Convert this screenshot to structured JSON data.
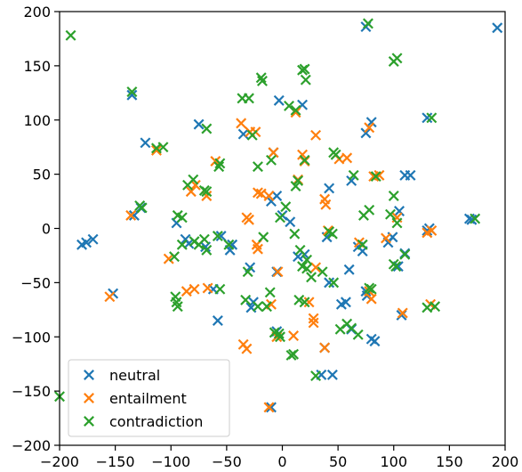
{
  "chart_data": {
    "type": "scatter",
    "title": "",
    "xlabel": "",
    "ylabel": "",
    "xlim": [
      -200,
      200
    ],
    "ylim": [
      -200,
      200
    ],
    "xticks": [
      -200,
      -150,
      -100,
      -50,
      0,
      50,
      100,
      150,
      200
    ],
    "yticks": [
      -200,
      -150,
      -100,
      -50,
      0,
      50,
      100,
      150,
      200
    ],
    "grid": false,
    "legend_position": "lower-left",
    "marker": "x",
    "series": [
      {
        "name": "neutral",
        "color": "#1f77b4",
        "points": [
          [
            75,
            186
          ],
          [
            193,
            185
          ],
          [
            -135,
            123
          ],
          [
            130,
            102
          ],
          [
            -75,
            96
          ],
          [
            80,
            98
          ],
          [
            -123,
            79
          ],
          [
            -35,
            87
          ],
          [
            75,
            88
          ],
          [
            -8,
            70
          ],
          [
            18,
            114
          ],
          [
            -3,
            118
          ],
          [
            42,
            37
          ],
          [
            -5,
            30
          ],
          [
            -10,
            25
          ],
          [
            0,
            12
          ],
          [
            7,
            6
          ],
          [
            -180,
            -15
          ],
          [
            -176,
            -13
          ],
          [
            -170,
            -10
          ],
          [
            -152,
            -60
          ],
          [
            -133,
            12
          ],
          [
            -127,
            19
          ],
          [
            -95,
            5
          ],
          [
            -87,
            -10
          ],
          [
            -84,
            -14
          ],
          [
            -69,
            -17
          ],
          [
            -55,
            -7
          ],
          [
            -45,
            -15
          ],
          [
            -47,
            -20
          ],
          [
            -62,
            -56
          ],
          [
            -58,
            -85
          ],
          [
            -29,
            -36
          ],
          [
            -26,
            -68
          ],
          [
            -28,
            -73
          ],
          [
            -10,
            -165
          ],
          [
            -5,
            -40
          ],
          [
            -5,
            -95
          ],
          [
            14,
            -26
          ],
          [
            20,
            -24
          ],
          [
            40,
            -8
          ],
          [
            42,
            -50
          ],
          [
            38,
            -110
          ],
          [
            53,
            -70
          ],
          [
            57,
            -68
          ],
          [
            60,
            -38
          ],
          [
            62,
            -93
          ],
          [
            72,
            -21
          ],
          [
            68,
            -17
          ],
          [
            75,
            -58
          ],
          [
            76,
            -62
          ],
          [
            104,
            -35
          ],
          [
            105,
            16
          ],
          [
            107,
            -80
          ],
          [
            110,
            49
          ],
          [
            115,
            49
          ],
          [
            95,
            -13
          ],
          [
            132,
            0
          ],
          [
            130,
            -2
          ],
          [
            168,
            9
          ],
          [
            170,
            8
          ],
          [
            35,
            -135
          ],
          [
            45,
            -135
          ],
          [
            83,
            -104
          ],
          [
            80,
            -102
          ],
          [
            99,
            -8
          ],
          [
            62,
            44
          ],
          [
            110,
            -23
          ]
        ]
      },
      {
        "name": "entailment",
        "color": "#ff7f0e",
        "points": [
          [
            -113,
            72
          ],
          [
            -82,
            34
          ],
          [
            -78,
            40
          ],
          [
            -37,
            97
          ],
          [
            -29,
            89
          ],
          [
            -24,
            89
          ],
          [
            -8,
            70
          ],
          [
            14,
            45
          ],
          [
            18,
            68
          ],
          [
            12,
            107
          ],
          [
            30,
            86
          ],
          [
            -22,
            33
          ],
          [
            -19,
            32
          ],
          [
            -12,
            30
          ],
          [
            -32,
            10
          ],
          [
            -30,
            8
          ],
          [
            -68,
            30
          ],
          [
            -60,
            62
          ],
          [
            -136,
            12
          ],
          [
            -102,
            -28
          ],
          [
            -155,
            -63
          ],
          [
            -86,
            -58
          ],
          [
            -79,
            -56
          ],
          [
            -67,
            -55
          ],
          [
            -23,
            -15
          ],
          [
            -22,
            -19
          ],
          [
            -35,
            -107
          ],
          [
            -32,
            -111
          ],
          [
            -4,
            -40
          ],
          [
            -12,
            -165
          ],
          [
            10,
            -99
          ],
          [
            24,
            -68
          ],
          [
            28,
            -83
          ],
          [
            28,
            -87
          ],
          [
            30,
            -36
          ],
          [
            38,
            -110
          ],
          [
            41,
            -2
          ],
          [
            38,
            27
          ],
          [
            51,
            64
          ],
          [
            58,
            65
          ],
          [
            78,
            93
          ],
          [
            82,
            48
          ],
          [
            87,
            49
          ],
          [
            69,
            -13
          ],
          [
            80,
            -65
          ],
          [
            78,
            -58
          ],
          [
            93,
            -9
          ],
          [
            103,
            10
          ],
          [
            108,
            -78
          ],
          [
            130,
            -4
          ],
          [
            134,
            -2
          ],
          [
            133,
            -70
          ],
          [
            -10,
            -70
          ],
          [
            -5,
            -100
          ],
          [
            39,
            22
          ],
          [
            20,
            62
          ]
        ]
      },
      {
        "name": "contradiction",
        "color": "#2ca02c",
        "points": [
          [
            -190,
            178
          ],
          [
            77,
            189
          ],
          [
            -135,
            126
          ],
          [
            100,
            154
          ],
          [
            103,
            157
          ],
          [
            134,
            102
          ],
          [
            -19,
            139
          ],
          [
            -18,
            136
          ],
          [
            20,
            147
          ],
          [
            18,
            146
          ],
          [
            21,
            137
          ],
          [
            -30,
            120
          ],
          [
            6,
            113
          ],
          [
            12,
            109
          ],
          [
            -68,
            92
          ],
          [
            -27,
            86
          ],
          [
            -10,
            63
          ],
          [
            -2,
            10
          ],
          [
            3,
            20
          ],
          [
            12,
            39
          ],
          [
            14,
            44
          ],
          [
            20,
            63
          ],
          [
            46,
            70
          ],
          [
            48,
            68
          ],
          [
            64,
            49
          ],
          [
            84,
            48
          ],
          [
            100,
            30
          ],
          [
            78,
            17
          ],
          [
            73,
            12
          ],
          [
            -113,
            74
          ],
          [
            -107,
            75
          ],
          [
            -85,
            40
          ],
          [
            -80,
            45
          ],
          [
            -70,
            35
          ],
          [
            -68,
            34
          ],
          [
            -57,
            57
          ],
          [
            -56,
            60
          ],
          [
            -36,
            120
          ],
          [
            -22,
            57
          ],
          [
            -128,
            21
          ],
          [
            -126,
            19
          ],
          [
            -94,
            12
          ],
          [
            -90,
            10
          ],
          [
            -79,
            -12
          ],
          [
            -75,
            -15
          ],
          [
            -70,
            -10
          ],
          [
            -68,
            -20
          ],
          [
            -90,
            -15
          ],
          [
            -97,
            -26
          ],
          [
            -96,
            -63
          ],
          [
            -95,
            -68
          ],
          [
            -94,
            -72
          ],
          [
            -58,
            -7
          ],
          [
            -48,
            -15
          ],
          [
            -56,
            -56
          ],
          [
            -33,
            -66
          ],
          [
            -31,
            -40
          ],
          [
            -22,
            -72
          ],
          [
            -14,
            -72
          ],
          [
            -11,
            -59
          ],
          [
            -7,
            -96
          ],
          [
            -3,
            -97
          ],
          [
            -2,
            -100
          ],
          [
            8,
            -117
          ],
          [
            10,
            -116
          ],
          [
            15,
            -66
          ],
          [
            18,
            -35
          ],
          [
            20,
            -68
          ],
          [
            22,
            -37
          ],
          [
            26,
            -45
          ],
          [
            30,
            -136
          ],
          [
            36,
            -40
          ],
          [
            46,
            -50
          ],
          [
            52,
            -93
          ],
          [
            58,
            -88
          ],
          [
            62,
            -92
          ],
          [
            68,
            -98
          ],
          [
            80,
            -56
          ],
          [
            78,
            -55
          ],
          [
            100,
            -33
          ],
          [
            102,
            -35
          ],
          [
            110,
            -24
          ],
          [
            137,
            -72
          ],
          [
            173,
            9
          ],
          [
            -17,
            -8
          ],
          [
            -200,
            -155
          ],
          [
            11,
            -5
          ],
          [
            16,
            -20
          ],
          [
            22,
            -29
          ],
          [
            42,
            -3
          ],
          [
            45,
            -5
          ],
          [
            72,
            -15
          ],
          [
            97,
            13
          ],
          [
            103,
            5
          ],
          [
            130,
            -73
          ]
        ]
      }
    ]
  }
}
